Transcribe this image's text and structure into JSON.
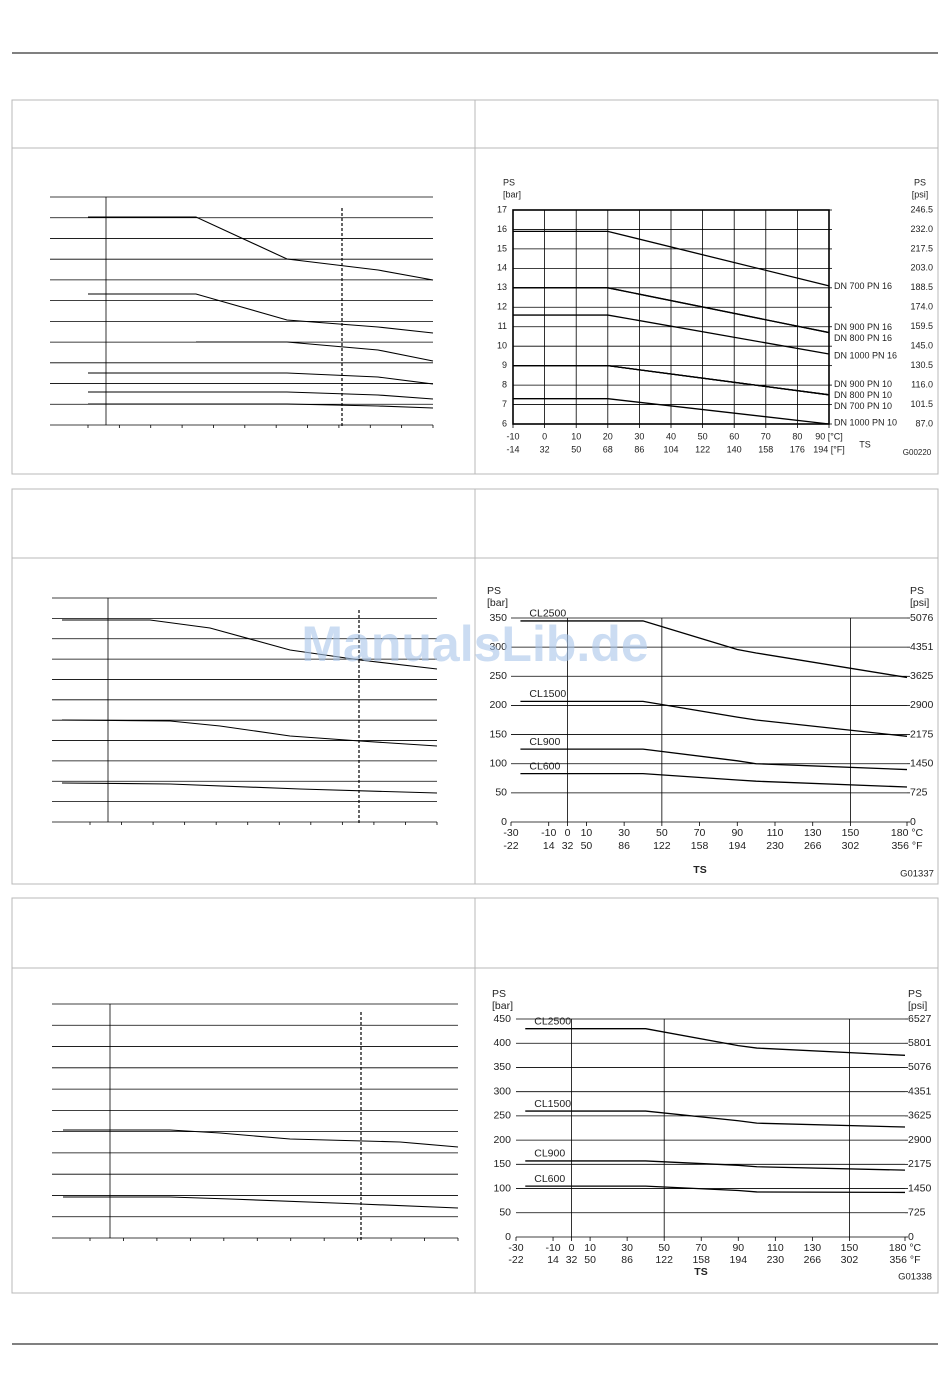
{
  "watermark": "ManualsLib.de",
  "chart_data": [
    {
      "type": "line",
      "ylabel": "PS",
      "yunit": "[bar]",
      "y2label": "PS",
      "y2unit": "[psi]",
      "xlabel": "TS",
      "code": "G00220",
      "x": [
        -10,
        20,
        90
      ],
      "xlim": [
        -10,
        90
      ],
      "xticks": [
        -10,
        0,
        10,
        20,
        30,
        40,
        50,
        60,
        70,
        80,
        {
          "value": 90,
          "label": "90 [°C]"
        }
      ],
      "x2ticks": [
        -14,
        32,
        50,
        68,
        86,
        104,
        122,
        140,
        158,
        176,
        {
          "value": 194,
          "label": "194 [°F]"
        }
      ],
      "ylim": [
        6,
        17
      ],
      "yticks": [
        6,
        7,
        8,
        9,
        10,
        11,
        12,
        13,
        14,
        15,
        16,
        17
      ],
      "y2lim": [
        87,
        246.5
      ],
      "y2ticks": [
        {
          "value": 87,
          "label": "87.0"
        },
        101.5,
        {
          "value": 116,
          "label": "116.0"
        },
        130.5,
        {
          "value": 145,
          "label": "145.0"
        },
        159.5,
        {
          "value": 174,
          "label": "174.0"
        },
        188.5,
        {
          "value": 203,
          "label": "203.0"
        },
        217.5,
        {
          "value": 232,
          "label": "232.0"
        },
        246.5
      ],
      "grid": true,
      "label_position": "end",
      "series": [
        {
          "name": "DN 700 PN 16",
          "color": "#000000",
          "values": [
            15.9,
            15.9,
            13.1
          ]
        },
        {
          "name": "DN 900 PN 16",
          "color": "#000000",
          "values": [
            13,
            13,
            10.7
          ]
        },
        {
          "name": "DN 800 PN 16",
          "color": "#000000",
          "values": [
            13,
            13,
            10.7
          ]
        },
        {
          "name": "DN 1000 PN 16",
          "color": "#000000",
          "values": [
            11.6,
            11.6,
            9.6
          ]
        },
        {
          "name": "DN 900 PN 10",
          "color": "#000000",
          "values": [
            9,
            9,
            7.5
          ]
        },
        {
          "name": "DN 800 PN 10",
          "color": "#000000",
          "values": [
            9,
            9,
            7.5
          ]
        },
        {
          "name": "DN 700 PN 10",
          "color": "#000000",
          "values": [
            9,
            9,
            7.5
          ]
        },
        {
          "name": "DN 1000 PN 10",
          "color": "#000000",
          "values": [
            7.3,
            7.3,
            6
          ]
        }
      ]
    },
    {
      "type": "line",
      "ylabel": "PS",
      "yunit": "[bar]",
      "y2label": "PS",
      "y2unit": "[psi]",
      "xlabel": "TS",
      "code": "G01337",
      "x": [
        -25,
        40,
        90,
        100,
        180
      ],
      "xlim": [
        -30,
        180
      ],
      "xticks": [
        -30,
        -10,
        0,
        10,
        30,
        50,
        70,
        90,
        110,
        130,
        150,
        {
          "value": 180,
          "label": "180 °C"
        }
      ],
      "x2ticks": [
        -22,
        14,
        32,
        50,
        86,
        122,
        158,
        194,
        230,
        266,
        302,
        {
          "value": 356,
          "label": "356 °F"
        }
      ],
      "ylim": [
        0,
        350
      ],
      "yticks": [
        0,
        50,
        100,
        150,
        200,
        250,
        300,
        350
      ],
      "y2lim": [
        0,
        5076
      ],
      "y2ticks": [
        0,
        725,
        1450,
        2175,
        2900,
        3625,
        4351,
        5076
      ],
      "xgrid": [
        0,
        50,
        150
      ],
      "label_position": "start",
      "series": [
        {
          "name": "CL2500",
          "color": "#000000",
          "values": [
            345,
            345,
            296,
            290,
            248
          ]
        },
        {
          "name": "CL1500",
          "color": "#000000",
          "values": [
            207,
            207,
            180,
            175,
            147
          ]
        },
        {
          "name": "CL900",
          "color": "#000000",
          "values": [
            125,
            125,
            105,
            100,
            90
          ]
        },
        {
          "name": "CL600",
          "color": "#000000",
          "values": [
            83,
            83,
            72,
            70,
            60
          ]
        }
      ]
    },
    {
      "type": "line",
      "ylabel": "PS",
      "yunit": "[bar]",
      "y2label": "PS",
      "y2unit": "[psi]",
      "xlabel": "TS",
      "code": "G01338",
      "x": [
        -25,
        40,
        90,
        100,
        180
      ],
      "xlim": [
        -30,
        180
      ],
      "xticks": [
        -30,
        -10,
        0,
        10,
        30,
        50,
        70,
        90,
        110,
        130,
        150,
        {
          "value": 180,
          "label": "180 °C"
        }
      ],
      "x2ticks": [
        -22,
        14,
        32,
        50,
        86,
        122,
        158,
        194,
        230,
        266,
        302,
        {
          "value": 356,
          "label": "356 °F"
        }
      ],
      "ylim": [
        0,
        450
      ],
      "yticks": [
        0,
        50,
        100,
        150,
        200,
        250,
        300,
        350,
        400,
        450
      ],
      "y2lim": [
        0,
        6527
      ],
      "y2ticks": [
        0,
        725,
        1450,
        2175,
        2900,
        3625,
        4351,
        5076,
        5801,
        6527
      ],
      "xgrid": [
        0,
        50,
        150
      ],
      "label_position": "start",
      "series": [
        {
          "name": "CL2500",
          "color": "#000000",
          "values": [
            430,
            430,
            395,
            390,
            375
          ]
        },
        {
          "name": "CL1500",
          "color": "#000000",
          "values": [
            260,
            260,
            240,
            235,
            227
          ]
        },
        {
          "name": "CL900",
          "color": "#000000",
          "values": [
            157,
            157,
            148,
            145,
            138
          ]
        },
        {
          "name": "CL600",
          "color": "#000000",
          "values": [
            105,
            105,
            96,
            93,
            92
          ]
        }
      ]
    }
  ]
}
